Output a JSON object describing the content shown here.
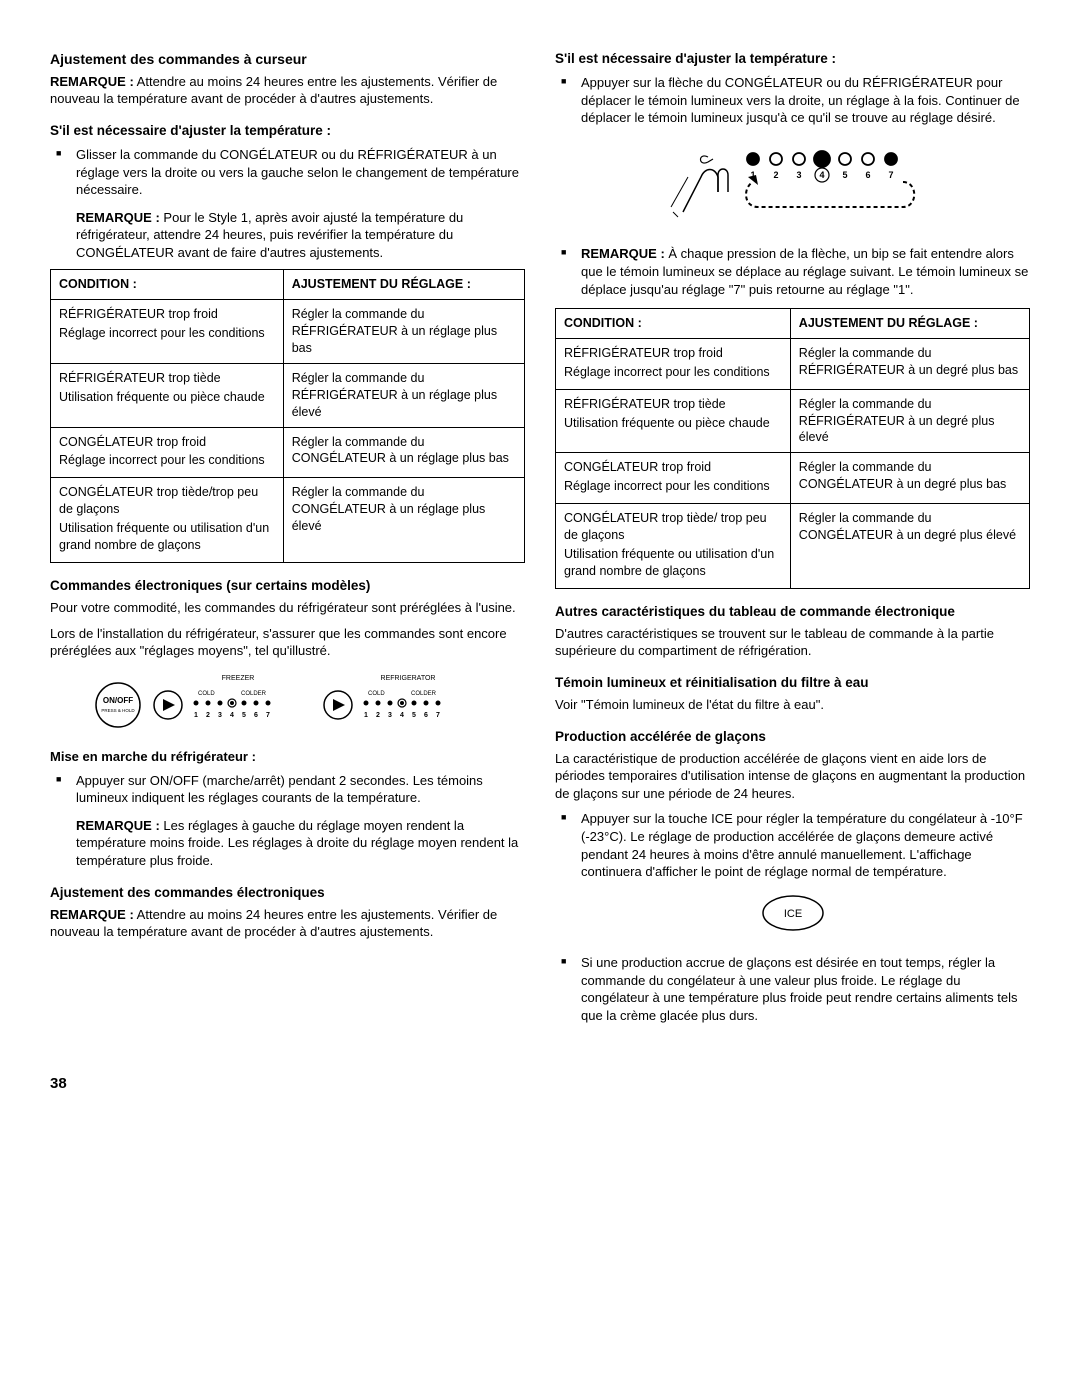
{
  "left": {
    "h_cursor": "Ajustement des commandes à curseur",
    "remarque_label": "REMARQUE :",
    "remarque_cursor": " Attendre au moins 24 heures entre les ajustements. Vérifier de nouveau la température avant de procéder à d'autres ajustements.",
    "h_adjust_temp": "S'il est nécessaire d'ajuster la température :",
    "bullet_slide": "Glisser la commande du CONGÉLATEUR ou du RÉFRIGÉRATEUR à un réglage vers la droite ou vers la gauche selon le changement de température nécessaire.",
    "note_style1_pre": "REMARQUE :",
    "note_style1": " Pour le Style 1, après avoir ajusté la température du réfrigérateur, attendre 24 heures, puis revérifier la température du CONGÉLATEUR avant de faire d'autres ajustements.",
    "table1": {
      "th1": "CONDITION :",
      "th2": "AJUSTEMENT DU RÉGLAGE :",
      "rows": [
        {
          "c1a": "RÉFRIGÉRATEUR trop froid",
          "c1b": "Réglage incorrect pour les conditions",
          "c2": "Régler la commande du RÉFRIGÉRATEUR à un réglage plus bas"
        },
        {
          "c1a": "RÉFRIGÉRATEUR trop tiède",
          "c1b": "Utilisation fréquente ou pièce chaude",
          "c2": "Régler la commande du RÉFRIGÉRATEUR à un réglage plus élevé"
        },
        {
          "c1a": "CONGÉLATEUR trop froid",
          "c1b": "Réglage incorrect pour les conditions",
          "c2": "Régler la commande du CONGÉLATEUR à un réglage plus bas"
        },
        {
          "c1a": "CONGÉLATEUR trop tiède/trop peu de glaçons",
          "c1b": "Utilisation fréquente ou utilisation d'un grand nombre de glaçons",
          "c2": "Régler la commande du CONGÉLATEUR à un réglage plus élevé"
        }
      ]
    },
    "h_electronic": "Commandes électroniques (sur certains modèles)",
    "p_electronic1": "Pour votre commodité, les commandes du réfrigérateur sont préréglées à l'usine.",
    "p_electronic2": "Lors de l'installation du réfrigérateur, s'assurer que les commandes sont encore préréglées aux \"réglages moyens\", tel qu'illustré.",
    "panel": {
      "freezer": "FREEZER",
      "refrigerator": "REFRIGERATOR",
      "cold": "COLD",
      "colder": "COLDER",
      "onoff": "ON/OFF",
      "presshold": "PRESS & HOLD",
      "numbers": [
        "1",
        "2",
        "3",
        "4",
        "5",
        "6",
        "7"
      ]
    },
    "h_startup": "Mise en marche du réfrigérateur :",
    "bullet_onoff": "Appuyer sur ON/OFF (marche/arrêt) pendant 2 secondes. Les témoins lumineux indiquent les réglages courants de la température.",
    "note_settings_pre": "REMARQUE :",
    "note_settings": " Les réglages à gauche du réglage moyen rendent la température moins froide. Les réglages à droite du réglage moyen rendent la température plus froide.",
    "h_adjust_elec": "Ajustement des commandes électroniques",
    "remarque_elec": " Attendre au moins 24 heures entre les ajustements. Vérifier de nouveau la température avant de procéder à d'autres ajustements."
  },
  "right": {
    "h_adjust_temp": "S'il est nécessaire d'ajuster la température :",
    "bullet_arrow": "Appuyer sur la flèche du CONGÉLATEUR ou du RÉFRIGÉRATEUR pour déplacer le témoin lumineux vers la droite, un réglage à la fois. Continuer de déplacer le témoin lumineux jusqu'à ce qu'il se trouve au réglage désiré.",
    "arrow_diagram": {
      "numbers": [
        "1",
        "2",
        "3",
        "4",
        "5",
        "6",
        "7"
      ]
    },
    "note_beep_pre": "REMARQUE :",
    "note_beep": " À chaque pression de la flèche, un bip se fait entendre alors que le témoin lumineux se déplace au réglage suivant. Le témoin lumineux se déplace jusqu'au réglage \"7\" puis retourne au réglage \"1\".",
    "table2": {
      "th1": "CONDITION :",
      "th2": "AJUSTEMENT DU RÉGLAGE :",
      "rows": [
        {
          "c1a": "RÉFRIGÉRATEUR trop froid",
          "c1b": "Réglage incorrect pour les conditions",
          "c2": "Régler la commande du RÉFRIGÉRATEUR à un degré plus bas"
        },
        {
          "c1a": "RÉFRIGÉRATEUR trop tiède",
          "c1b": "Utilisation fréquente ou pièce chaude",
          "c2": "Régler la commande du RÉFRIGÉRATEUR à un degré plus élevé"
        },
        {
          "c1a": "CONGÉLATEUR trop froid",
          "c1b": "Réglage incorrect pour les conditions",
          "c2": "Régler la commande du CONGÉLATEUR à un degré plus bas"
        },
        {
          "c1a": "CONGÉLATEUR trop tiède/ trop peu de glaçons",
          "c1b": "Utilisation fréquente ou utilisation d'un grand nombre de glaçons",
          "c2": "Régler la commande du CONGÉLATEUR à un degré plus élevé"
        }
      ]
    },
    "h_other": "Autres caractéristiques du tableau de commande électronique",
    "p_other": "D'autres caractéristiques se trouvent sur le tableau de commande à la partie supérieure du compartiment de réfrigération.",
    "h_filter": "Témoin lumineux et réinitialisation du filtre à eau",
    "p_filter": "Voir \"Témoin lumineux de l'état du filtre à eau\".",
    "h_ice": "Production accélérée de glaçons",
    "p_ice": "La caractéristique de production accélérée de glaçons vient en aide lors de périodes temporaires d'utilisation intense de glaçons en augmentant la production de glaçons sur une période de 24 heures.",
    "bullet_ice1": "Appuyer sur la touche ICE pour régler la température du congélateur à -10°F (-23°C). Le réglage de production accélérée de glaçons demeure activé pendant 24 heures à moins d'être annulé manuellement. L'affichage continuera d'afficher le point de réglage normal de température.",
    "ice_label": "ICE",
    "bullet_ice2": "Si une production accrue de glaçons est désirée en tout temps, régler la commande du congélateur à une valeur plus froide. Le réglage du congélateur à une température plus froide peut rendre certains aliments tels que la crème glacée plus durs."
  },
  "page_number": "38"
}
